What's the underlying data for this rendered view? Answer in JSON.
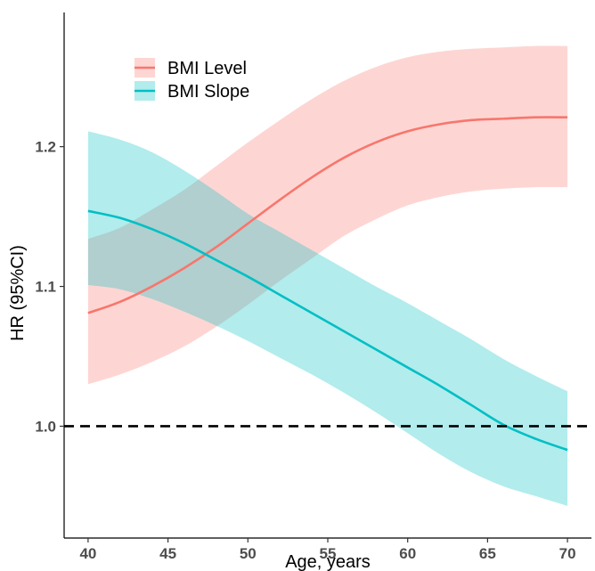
{
  "chart_data": {
    "type": "line",
    "title": "",
    "xlabel": "Age, years",
    "ylabel": "HR (95%CI)",
    "xlim": [
      38.5,
      71.5
    ],
    "ylim": [
      0.92,
      1.296
    ],
    "x_ticks": [
      40,
      45,
      50,
      55,
      60,
      65,
      70
    ],
    "x_tick_labels": [
      "40",
      "45",
      "50",
      "55",
      "60",
      "65",
      "70"
    ],
    "y_ticks": [
      1.0,
      1.1,
      1.2
    ],
    "y_tick_labels": [
      "1.0",
      "1.1",
      "1.2"
    ],
    "reference_line": {
      "y": 1.0,
      "style": "dashed",
      "color": "#000000"
    },
    "grid": false,
    "legend_position": "top-left",
    "x": [
      40,
      42,
      44,
      46,
      48,
      50,
      52,
      54,
      56,
      58,
      60,
      62,
      64,
      66,
      68,
      70
    ],
    "series": [
      {
        "name": "BMI Level",
        "color": "#F8766D",
        "ribbon_color": "#F8766D",
        "values": [
          1.081,
          1.089,
          1.1,
          1.113,
          1.128,
          1.145,
          1.162,
          1.178,
          1.192,
          1.203,
          1.211,
          1.216,
          1.219,
          1.22,
          1.221,
          1.221
        ],
        "lower": [
          1.03,
          1.037,
          1.046,
          1.057,
          1.071,
          1.087,
          1.104,
          1.12,
          1.136,
          1.148,
          1.158,
          1.164,
          1.168,
          1.17,
          1.171,
          1.171
        ],
        "upper": [
          1.134,
          1.142,
          1.155,
          1.169,
          1.186,
          1.203,
          1.219,
          1.234,
          1.247,
          1.257,
          1.264,
          1.268,
          1.27,
          1.271,
          1.272,
          1.272
        ]
      },
      {
        "name": "BMI Slope",
        "color": "#00BFC4",
        "ribbon_color": "#00BFC4",
        "values": [
          1.154,
          1.149,
          1.141,
          1.131,
          1.119,
          1.107,
          1.094,
          1.081,
          1.068,
          1.055,
          1.042,
          1.029,
          1.015,
          1.001,
          0.991,
          0.983
        ],
        "lower": [
          1.101,
          1.098,
          1.091,
          1.082,
          1.072,
          1.061,
          1.049,
          1.037,
          1.024,
          1.01,
          0.995,
          0.98,
          0.967,
          0.957,
          0.95,
          0.943
        ],
        "upper": [
          1.211,
          1.205,
          1.196,
          1.183,
          1.168,
          1.152,
          1.139,
          1.126,
          1.113,
          1.1,
          1.088,
          1.075,
          1.062,
          1.048,
          1.036,
          1.025
        ]
      }
    ]
  }
}
